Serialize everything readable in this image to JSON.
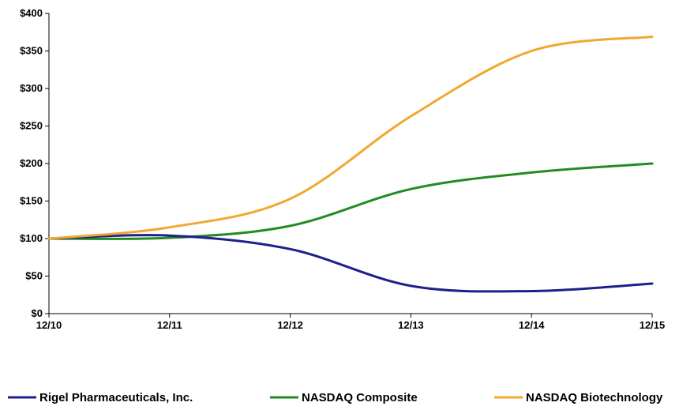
{
  "chart_data": {
    "type": "line",
    "categories": [
      "12/10",
      "12/11",
      "12/12",
      "12/13",
      "12/14",
      "12/15"
    ],
    "ylim": [
      0,
      400
    ],
    "yticks": [
      0,
      50,
      100,
      150,
      200,
      250,
      300,
      350,
      400
    ],
    "ytick_labels": [
      "$0",
      "$50",
      "$100",
      "$150",
      "$200",
      "$250",
      "$300",
      "$350",
      "$400"
    ],
    "grid": false,
    "legend_position": "bottom",
    "series": [
      {
        "name": "Rigel Pharmaceuticals, Inc.",
        "color": "#1f1f8c",
        "values": [
          100,
          104,
          86,
          37,
          30,
          40
        ]
      },
      {
        "name": "NASDAQ Composite",
        "color": "#238b23",
        "values": [
          100,
          101,
          117,
          166,
          188,
          200
        ]
      },
      {
        "name": "NASDAQ Biotechnology",
        "color": "#f0a830",
        "values": [
          100,
          115,
          153,
          263,
          350,
          369
        ]
      }
    ]
  }
}
